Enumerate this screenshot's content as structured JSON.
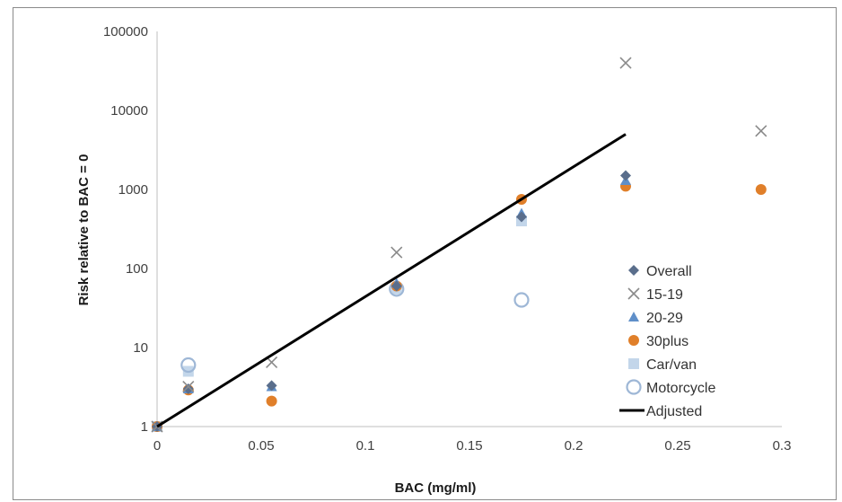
{
  "chart_data": {
    "type": "scatter",
    "title": "",
    "xlabel": "BAC (mg/ml)",
    "ylabel": "Risk relative to BAC = 0",
    "xlim": [
      0,
      0.3
    ],
    "ylim": [
      1,
      100000
    ],
    "yscale": "log",
    "grid": false,
    "legend_position": "right",
    "x_ticks": [
      0,
      0.05,
      0.1,
      0.15,
      0.2,
      0.25,
      0.3
    ],
    "x_tick_labels": [
      "0",
      "0.05",
      "0.1",
      "0.15",
      "0.2",
      "0.25",
      "0.3"
    ],
    "y_ticks": [
      1,
      10,
      100,
      1000,
      10000,
      100000
    ],
    "y_tick_labels": [
      "1",
      "10",
      "100",
      "1000",
      "10000",
      "100000"
    ],
    "series": [
      {
        "name": "Overall",
        "marker": "diamond",
        "color": "#5a6e8c",
        "x": [
          0,
          0.015,
          0.055,
          0.115,
          0.175,
          0.225
        ],
        "y": [
          1,
          3,
          3.3,
          60,
          450,
          1500
        ]
      },
      {
        "name": "15-19",
        "marker": "x",
        "color": "#8a8a8a",
        "x": [
          0,
          0.015,
          0.055,
          0.115,
          0.225,
          0.29
        ],
        "y": [
          1,
          3.2,
          6.5,
          160,
          40000,
          5500
        ]
      },
      {
        "name": "20-29",
        "marker": "triangle",
        "color": "#5f8fc9",
        "x": [
          0,
          0.015,
          0.055,
          0.115,
          0.175,
          0.225
        ],
        "y": [
          1,
          3,
          3.2,
          65,
          500,
          1300
        ]
      },
      {
        "name": "30plus",
        "marker": "circle",
        "color": "#e07f2a",
        "x": [
          0,
          0.015,
          0.055,
          0.115,
          0.175,
          0.225,
          0.29
        ],
        "y": [
          1,
          2.9,
          2.1,
          60,
          750,
          1100,
          1000
        ]
      },
      {
        "name": "Car/van",
        "marker": "square",
        "color": "#b9cfe6",
        "x": [
          0,
          0.015,
          0.115,
          0.175
        ],
        "y": [
          1,
          5,
          55,
          400
        ]
      },
      {
        "name": "Motorcycle",
        "marker": "open-circle",
        "color": "#9eb7d6",
        "x": [
          0.015,
          0.115,
          0.175
        ],
        "y": [
          6,
          55,
          40
        ]
      },
      {
        "name": "Adjusted",
        "marker": "line",
        "color": "#000000",
        "x": [
          0,
          0.225
        ],
        "y": [
          1,
          5000
        ]
      }
    ]
  }
}
